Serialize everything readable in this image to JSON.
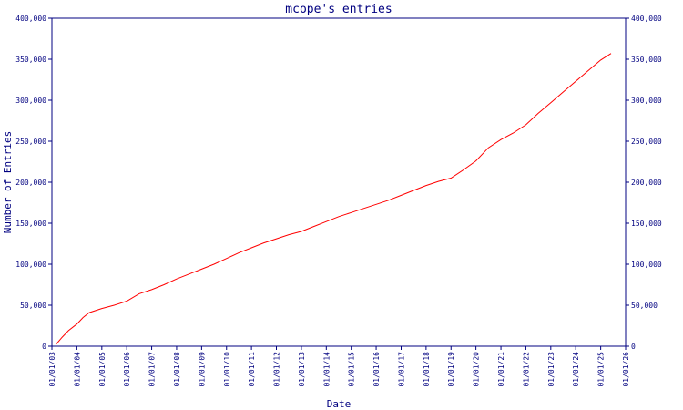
{
  "chart_data": {
    "type": "line",
    "title": "mcope's entries",
    "xlabel": "Date",
    "ylabel": "Number of Entries",
    "ylim": [
      0,
      400000
    ],
    "y_ticks": [
      0,
      50000,
      100000,
      150000,
      200000,
      250000,
      300000,
      350000,
      400000
    ],
    "y_tick_labels": [
      "0",
      "50,000",
      "100,000",
      "150,000",
      "200,000",
      "250,000",
      "300,000",
      "350,000",
      "400,000"
    ],
    "x_ticks": [
      "2003-01-01",
      "2004-01-01",
      "2005-01-01",
      "2006-01-01",
      "2007-01-01",
      "2008-01-01",
      "2009-01-01",
      "2010-01-01",
      "2011-01-01",
      "2012-01-01",
      "2013-01-01",
      "2014-01-01",
      "2015-01-01",
      "2016-01-01",
      "2017-01-01",
      "2018-01-01",
      "2019-01-01",
      "2020-01-01",
      "2021-01-01",
      "2022-01-01",
      "2023-01-01",
      "2024-01-01",
      "2025-01-01",
      "2026-01-01"
    ],
    "x_tick_labels": [
      "01/01/03",
      "01/01/04",
      "01/01/05",
      "01/01/06",
      "01/01/07",
      "01/01/08",
      "01/01/09",
      "01/01/10",
      "01/01/11",
      "01/01/12",
      "01/01/13",
      "01/01/14",
      "01/01/15",
      "01/01/16",
      "01/01/17",
      "01/01/18",
      "01/01/19",
      "01/01/20",
      "01/01/21",
      "01/01/22",
      "01/01/23",
      "01/01/24",
      "01/01/25",
      "01/01/26"
    ],
    "grid": false,
    "line_color": "#ff0000",
    "axis_color": "#000080",
    "series": [
      {
        "x": [
          "2003-03-01",
          "2003-06-01",
          "2003-09-01",
          "2004-01-01",
          "2004-04-01",
          "2004-07-01",
          "2005-01-01",
          "2005-07-01",
          "2006-01-01",
          "2006-07-01",
          "2007-01-01",
          "2007-07-01",
          "2008-01-01",
          "2008-07-01",
          "2009-01-01",
          "2009-07-01",
          "2010-01-01",
          "2010-07-01",
          "2011-01-01",
          "2011-07-01",
          "2012-01-01",
          "2012-07-01",
          "2013-01-01",
          "2013-07-01",
          "2014-01-01",
          "2014-07-01",
          "2015-01-01",
          "2015-07-01",
          "2016-01-01",
          "2016-07-01",
          "2017-01-01",
          "2017-07-01",
          "2018-01-01",
          "2018-07-01",
          "2019-01-01",
          "2019-07-01",
          "2020-01-01",
          "2020-07-01",
          "2021-01-01",
          "2021-07-01",
          "2022-01-01",
          "2022-07-01",
          "2023-01-01",
          "2023-07-01",
          "2024-01-01",
          "2024-07-01",
          "2025-01-01",
          "2025-06-01"
        ],
        "y": [
          2000,
          11000,
          19000,
          27000,
          35000,
          41000,
          46000,
          50000,
          55000,
          64000,
          69000,
          75000,
          82000,
          88000,
          94000,
          100000,
          107000,
          114000,
          120000,
          126000,
          131000,
          136000,
          140000,
          146000,
          152000,
          158000,
          163000,
          168000,
          173000,
          178000,
          184000,
          190000,
          196000,
          201000,
          205000,
          215000,
          226000,
          242000,
          252000,
          260000,
          270000,
          284000,
          297000,
          310000,
          323000,
          336000,
          349000,
          357000
        ]
      }
    ]
  }
}
